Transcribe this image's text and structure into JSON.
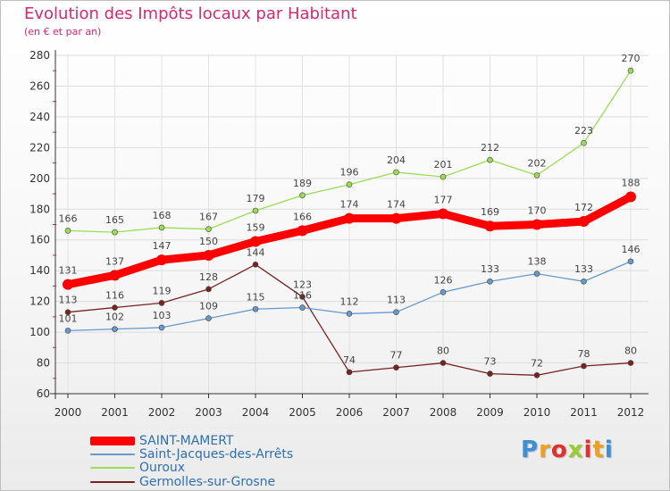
{
  "header": {
    "title": "Evolution des Impôts locaux par Habitant",
    "subtitle": "(en € et par an)"
  },
  "logo": {
    "text": "Proxiti"
  },
  "chart_data": {
    "type": "line",
    "title": "Evolution des Impôts locaux par Habitant",
    "subtitle": "(en € et par an)",
    "xlabel": "",
    "ylabel": "",
    "categories": [
      "2000",
      "2001",
      "2002",
      "2003",
      "2004",
      "2005",
      "2006",
      "2007",
      "2008",
      "2009",
      "2010",
      "2011",
      "2012"
    ],
    "ylim": [
      60,
      280
    ],
    "yticks": [
      60,
      80,
      100,
      120,
      140,
      160,
      180,
      200,
      220,
      240,
      260,
      280
    ],
    "grid": true,
    "legend_position": "bottom-left",
    "series": [
      {
        "name": "SAINT-MAMERT",
        "color": "#ff0000",
        "emphasis": true,
        "values": [
          131,
          137,
          147,
          150,
          159,
          166,
          174,
          174,
          177,
          169,
          170,
          172,
          188
        ]
      },
      {
        "name": "Saint-Jacques-des-Arrêts",
        "color": "#6699cc",
        "emphasis": false,
        "values": [
          101,
          102,
          103,
          109,
          115,
          116,
          112,
          113,
          126,
          133,
          138,
          133,
          146
        ]
      },
      {
        "name": "Ouroux",
        "color": "#99dd55",
        "emphasis": false,
        "values": [
          166,
          165,
          168,
          167,
          179,
          189,
          196,
          204,
          201,
          212,
          202,
          223,
          270
        ]
      },
      {
        "name": "Germolles-sur-Grosne",
        "color": "#7a2222",
        "emphasis": false,
        "values": [
          113,
          116,
          119,
          128,
          144,
          123,
          74,
          77,
          80,
          73,
          72,
          78,
          80
        ]
      }
    ],
    "value_labels": [
      [
        "131",
        "137",
        "147",
        "150",
        "159",
        "166",
        "174",
        "174",
        "177",
        "169",
        "170",
        "172",
        "188"
      ],
      [
        "101",
        "102",
        "103",
        "109",
        "115",
        "116",
        "112",
        "113",
        "126",
        "133",
        "138",
        "133",
        "146"
      ],
      [
        "166",
        "165",
        "168",
        "167",
        "179",
        "189",
        "196",
        "204",
        "201",
        "212",
        "202",
        "223",
        "270"
      ],
      [
        "113",
        "116",
        "119",
        "128",
        "144",
        "123",
        "74",
        "77",
        "80",
        "73",
        "72",
        "78",
        "80"
      ]
    ]
  }
}
